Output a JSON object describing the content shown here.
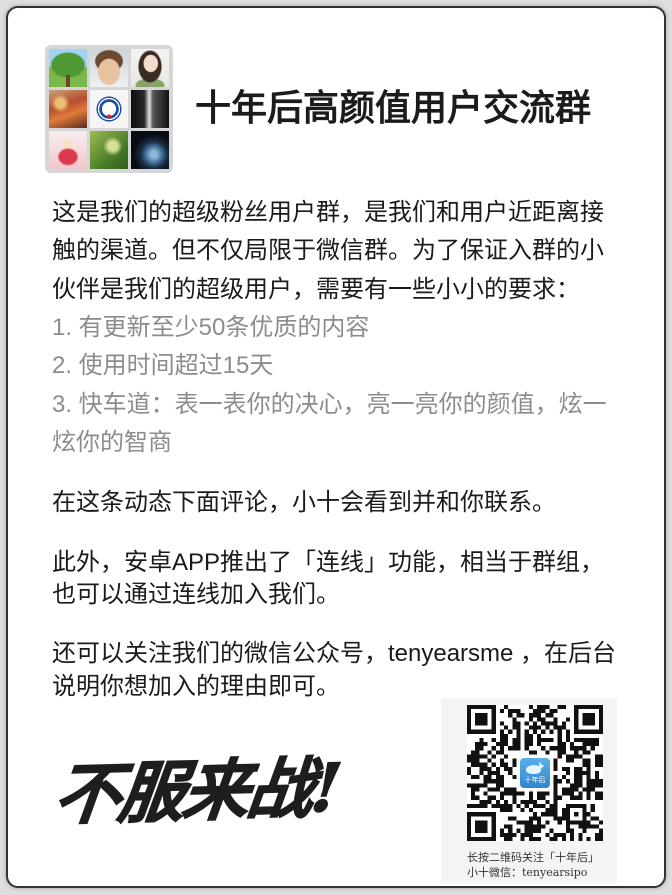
{
  "group": {
    "title": "十年后高颜值用户交流群"
  },
  "intro": {
    "lines": [
      "这是我们的超级粉丝用户群，是我们和用户近距离接",
      "触的渠道。但不仅局限于微信群。为了保证入群的小",
      "伙伴是我们的超级用户，需要有一些小小的要求："
    ]
  },
  "requirements": [
    {
      "lines": [
        "1. 有更新至少50条优质的内容"
      ]
    },
    {
      "lines": [
        "2. 使用时间超过15天"
      ]
    },
    {
      "lines": [
        "3. 快车道：表一表你的决心，亮一亮你的颜值，炫一",
        "炫你的智商"
      ]
    }
  ],
  "comment_note": {
    "lines": [
      "在这条动态下面评论，小十会看到并和你联系。"
    ]
  },
  "app_note": {
    "lines": [
      "此外，安卓APP推出了「连线」功能，相当于群组，",
      "也可以通过连线加入我们。"
    ]
  },
  "wechat_note": {
    "lines": [
      "还可以关注我们的微信公众号，tenyearsme ，在后台",
      "说明你想加入的理由即可。"
    ]
  },
  "slogan": "不服来战!",
  "qr": {
    "logo_text": "十年后",
    "logo_icon": "whale-icon",
    "caption_line1": "长按二维码关注「十年后」",
    "caption_line2": "小十微信：tenyearsipo"
  },
  "colors": {
    "text": "#1b1b1b",
    "muted": "#8c8c8c",
    "qr_logo": "#2f86cc"
  }
}
